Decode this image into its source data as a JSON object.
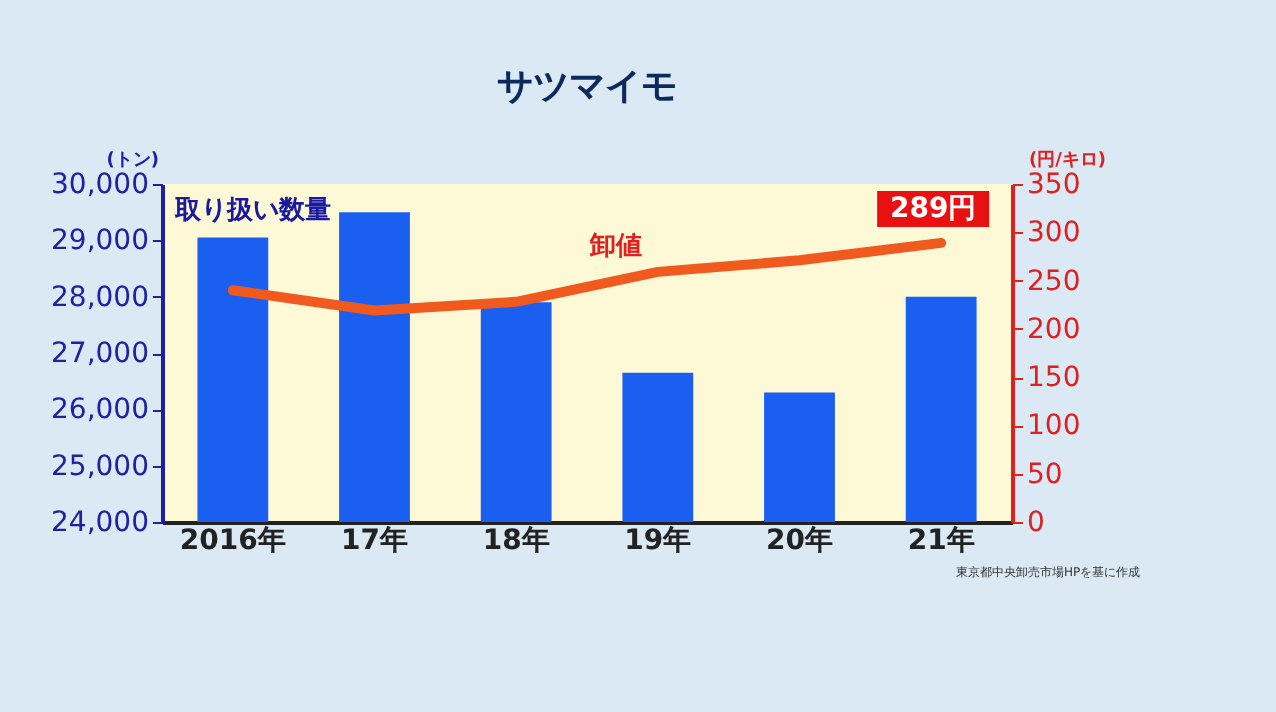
{
  "chart_data": {
    "type": "bar",
    "title": "サツマイモ",
    "ylabel": "(トン)",
    "y2label": "(円/キロ)",
    "categories": [
      "2016年",
      "17年",
      "18年",
      "19年",
      "20年",
      "21年"
    ],
    "series": [
      {
        "name": "取り扱い数量",
        "color": "#1a5ff0",
        "values": [
          29050,
          29500,
          27900,
          26650,
          26300,
          28000
        ]
      },
      {
        "name": "卸値",
        "type": "line",
        "axis": "y2",
        "color": "#f05a1e",
        "values": [
          240,
          219,
          228,
          259,
          271,
          289
        ]
      }
    ],
    "ylim": [
      24000,
      30000
    ],
    "yticks": [
      {
        "value": 24000,
        "label": "24,000"
      },
      {
        "value": 25000,
        "label": "25,000"
      },
      {
        "value": 26000,
        "label": "26,000"
      },
      {
        "value": 27000,
        "label": "27,000"
      },
      {
        "value": 28000,
        "label": "28,000"
      },
      {
        "value": 29000,
        "label": "29,000"
      },
      {
        "value": 30000,
        "label": "30,000"
      }
    ],
    "y2lim": [
      0,
      350
    ],
    "y2ticks": [
      0,
      50,
      100,
      150,
      200,
      250,
      300,
      350
    ],
    "annotations": [
      "289円",
      "東京都中央卸売市場HPを基に作成"
    ],
    "legend": false,
    "grid": false,
    "marker": "none"
  }
}
